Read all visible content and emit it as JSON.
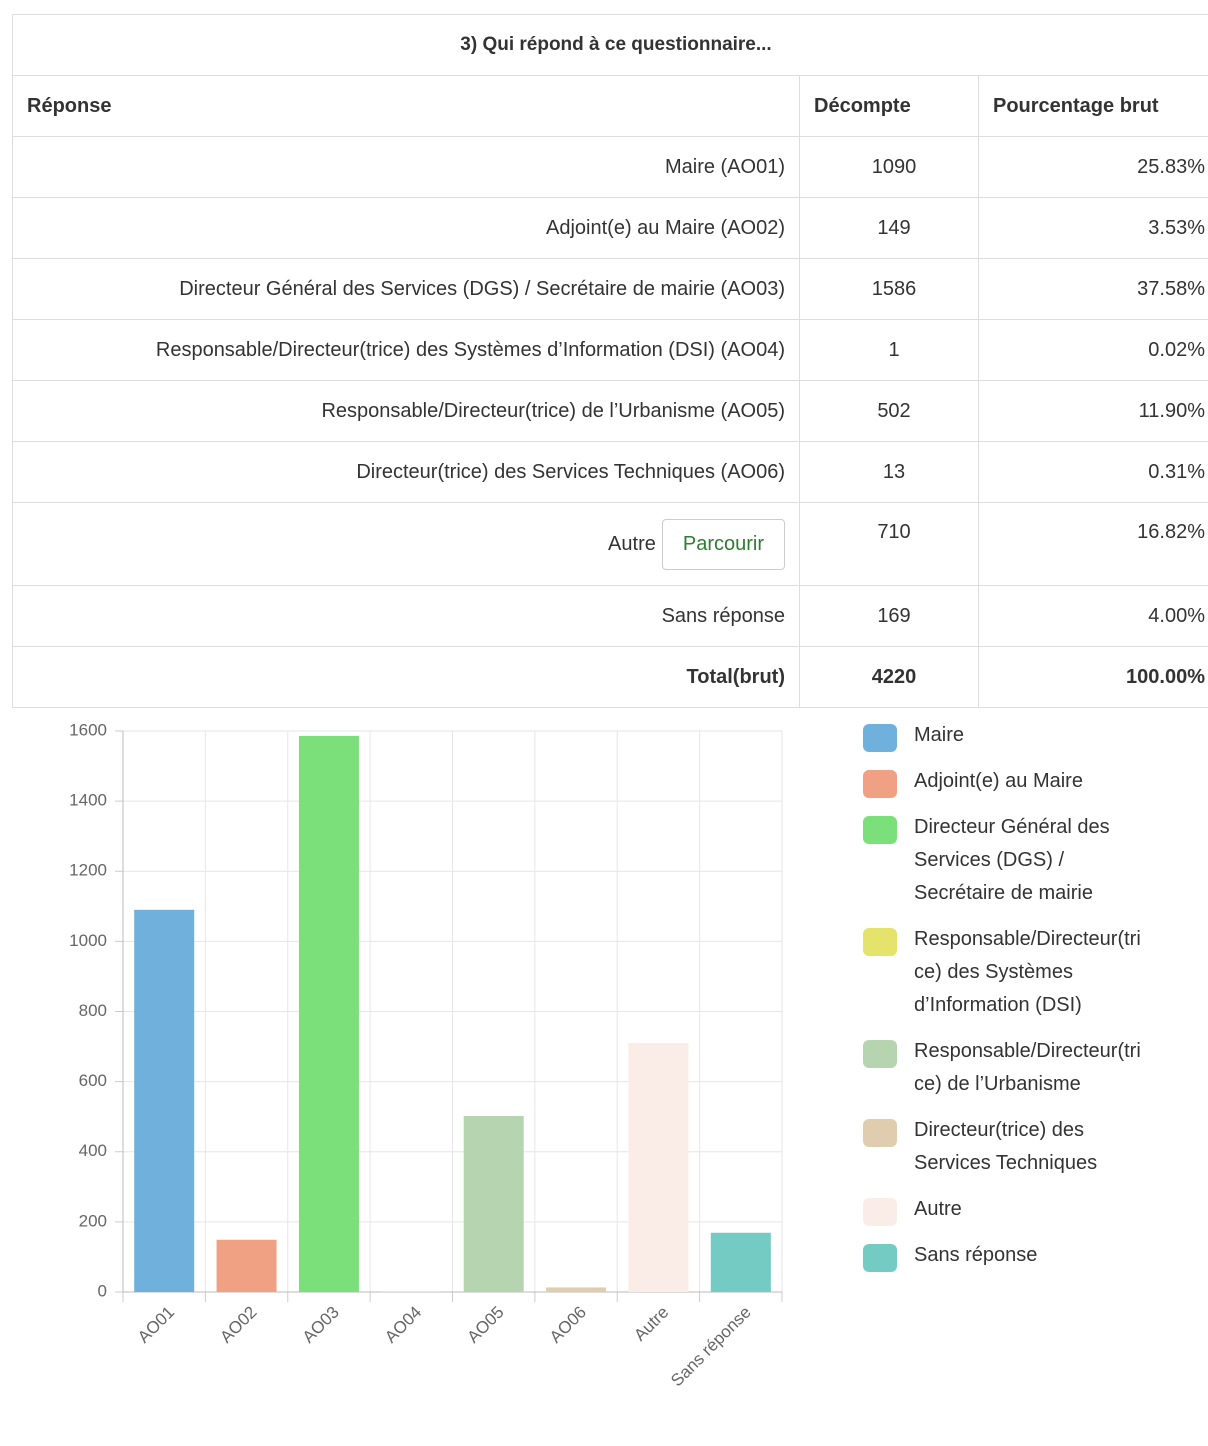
{
  "table": {
    "title": "3) Qui répond à ce questionnaire...",
    "headers": [
      "Réponse",
      "Décompte",
      "Pourcentage brut"
    ],
    "rows": [
      {
        "label": "Maire (AO01)",
        "count": 1090,
        "percent": "25.83%"
      },
      {
        "label": "Adjoint(e) au Maire (AO02)",
        "count": 149,
        "percent": "3.53%"
      },
      {
        "label": "Directeur Général des Services (DGS) / Secrétaire de mairie (AO03)",
        "count": 1586,
        "percent": "37.58%"
      },
      {
        "label": "Responsable/Directeur(trice) des Systèmes d’Information (DSI) (AO04)",
        "count": 1,
        "percent": "0.02%"
      },
      {
        "label": "Responsable/Directeur(trice) de l’Urbanisme (AO05)",
        "count": 502,
        "percent": "11.90%"
      },
      {
        "label": "Directeur(trice) des Services Techniques (AO06)",
        "count": 13,
        "percent": "0.31%"
      },
      {
        "label": "Autre",
        "button": "Parcourir",
        "count": 710,
        "percent": "16.82%"
      },
      {
        "label": "Sans réponse",
        "count": 169,
        "percent": "4.00%"
      }
    ],
    "total": {
      "label": "Total(brut)",
      "count": 4220,
      "percent": "100.00%"
    }
  },
  "chart_data": {
    "type": "bar",
    "categories": [
      "AO01",
      "AO02",
      "AO03",
      "AO04",
      "AO05",
      "AO06",
      "Autre",
      "Sans réponse"
    ],
    "values": [
      1090,
      149,
      1586,
      1,
      502,
      13,
      710,
      169
    ],
    "colors": [
      "#6fb1dc",
      "#f0a083",
      "#7be07a",
      "#e4e46c",
      "#b6d4b0",
      "#e0cdb0",
      "#faede8",
      "#74cbc3"
    ],
    "legend": [
      "Maire",
      "Adjoint(e) au Maire",
      "Directeur Général des Services (DGS) / Secrétaire de mairie",
      "Responsable/Directeur(trice) des Systèmes d’Information (DSI)",
      "Responsable/Directeur(trice) de l’Urbanisme",
      "Directeur(trice) des Services Techniques",
      "Autre",
      "Sans réponse"
    ],
    "ylim": [
      0,
      1600
    ],
    "yticks": [
      0,
      200,
      400,
      600,
      800,
      1000,
      1200,
      1400,
      1600
    ],
    "grid": true
  }
}
